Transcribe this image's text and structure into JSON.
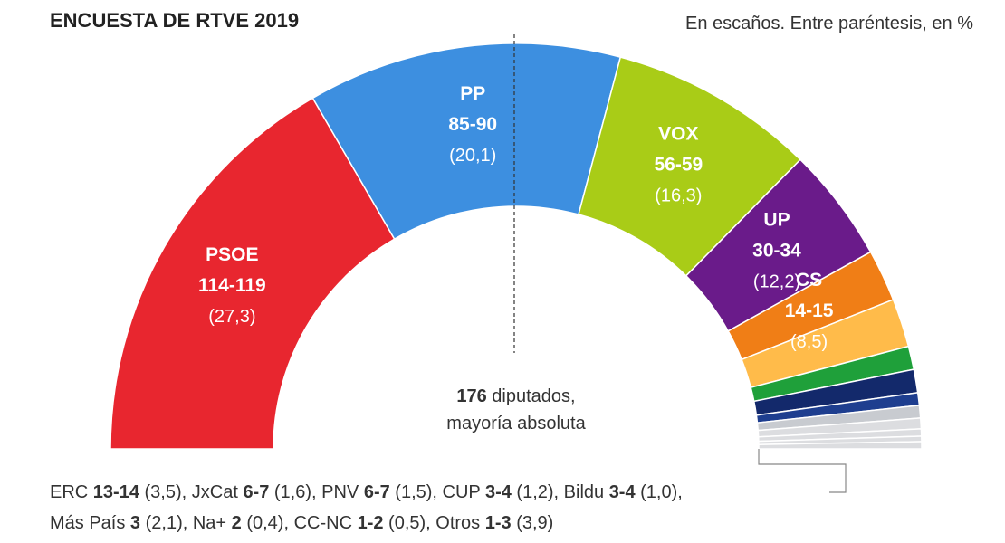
{
  "chart_data": {
    "type": "pie",
    "subtype": "parliament-hemicycle",
    "title": "ENCUESTA DE RTVE 2019",
    "subtitle": "En escaños. Entre paréntesis, en %",
    "center_label": {
      "number": "176",
      "text1": " diputados,",
      "text2": "mayoría absoluta"
    },
    "series": [
      {
        "name": "PSOE",
        "seats": "114-119",
        "pct": "(27,3)",
        "value": 116.5,
        "color": "#E8262F",
        "labeled": true
      },
      {
        "name": "PP",
        "seats": "85-90",
        "pct": "(20,1)",
        "value": 87.5,
        "color": "#3D8FE0",
        "labeled": true
      },
      {
        "name": "VOX",
        "seats": "56-59",
        "pct": "(16,3)",
        "value": 57.5,
        "color": "#A9CC17",
        "labeled": true
      },
      {
        "name": "UP",
        "seats": "30-34",
        "pct": "(12,2)",
        "value": 32,
        "color": "#6A1B8A",
        "labeled": true
      },
      {
        "name": "CS",
        "seats": "14-15",
        "pct": "(8,5)",
        "value": 14.5,
        "color": "#F07E16",
        "labeled": true
      },
      {
        "name": "ERC",
        "seats": "13-14",
        "pct": "(3,5)",
        "value": 13.5,
        "color": "#FFBB4A",
        "labeled": false
      },
      {
        "name": "JxCat",
        "seats": "6-7",
        "pct": "(1,6)",
        "value": 6.5,
        "color": "#1FA03A",
        "labeled": false
      },
      {
        "name": "PNV",
        "seats": "6-7",
        "pct": "(1,5)",
        "value": 6.5,
        "color": "#13296B",
        "labeled": false
      },
      {
        "name": "CUP",
        "seats": "3-4",
        "pct": "(1,2)",
        "value": 3.5,
        "color": "#1E3E8F",
        "labeled": false
      },
      {
        "name": "Bildu",
        "seats": "3-4",
        "pct": "(1,0)",
        "value": 3.5,
        "color": "#C8CBD0",
        "labeled": false
      },
      {
        "name": "Más País",
        "seats": "3",
        "pct": "(2,1)",
        "value": 3,
        "color": "#DCDDE0",
        "labeled": false
      },
      {
        "name": "Na+",
        "seats": "2",
        "pct": "(0,4)",
        "value": 2,
        "color": "#DCDDE0",
        "labeled": false
      },
      {
        "name": "CC-NC",
        "seats": "1-2",
        "pct": "(0,5)",
        "value": 1.5,
        "color": "#DCDDE0",
        "labeled": false
      },
      {
        "name": "Otros",
        "seats": "1-3",
        "pct": "(3,9)",
        "value": 2,
        "color": "#DCDDE0",
        "labeled": false
      }
    ],
    "total_seats": 350,
    "majority": 176
  },
  "legend_lines": [
    [
      {
        "name": "ERC",
        "seats": "13-14",
        "pct": "(3,5)"
      },
      {
        "name": "JxCat",
        "seats": "6-7",
        "pct": "(1,6)"
      },
      {
        "name": "PNV",
        "seats": "6-7",
        "pct": "(1,5)"
      },
      {
        "name": "CUP",
        "seats": "3-4",
        "pct": "(1,2)"
      },
      {
        "name": "Bildu",
        "seats": "3-4",
        "pct": "(1,0)"
      }
    ],
    [
      {
        "name": "Más País",
        "seats": "3",
        "pct": "(2,1)"
      },
      {
        "name": "Na+",
        "seats": "2",
        "pct": "(0,4)"
      },
      {
        "name": "CC-NC",
        "seats": "1-2",
        "pct": "(0,5)"
      },
      {
        "name": "Otros",
        "seats": "1-3",
        "pct": "(3,9)"
      }
    ]
  ]
}
